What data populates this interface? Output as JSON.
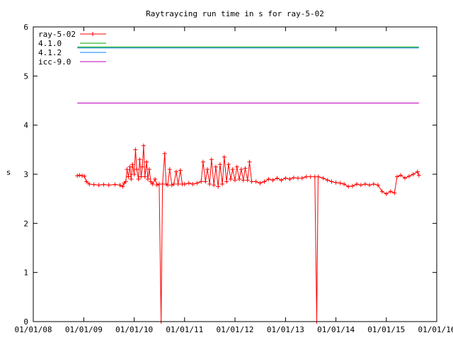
{
  "chart_data": {
    "type": "line",
    "title": "Raytraycing run time in s for ray-5-02",
    "xlabel": "",
    "ylabel": "s",
    "x_axis": {
      "kind": "date",
      "range": [
        "2008-01-01",
        "2016-01-01"
      ],
      "ticks": [
        "2008-01-01",
        "2009-01-01",
        "2010-01-01",
        "2011-01-01",
        "2012-01-01",
        "2013-01-01",
        "2014-01-01",
        "2015-01-01",
        "2016-01-01"
      ],
      "tick_labels": [
        "01/01/08",
        "01/01/09",
        "01/01/10",
        "01/01/11",
        "01/01/12",
        "01/01/13",
        "01/01/14",
        "01/01/15",
        "01/01/16"
      ]
    },
    "y_axis": {
      "range": [
        0,
        6
      ],
      "ticks": [
        0,
        1,
        2,
        3,
        4,
        5,
        6
      ],
      "tick_labels": [
        "0",
        "1",
        "2",
        "3",
        "4",
        "5",
        "6"
      ]
    },
    "grid": false,
    "legend_placement": "top-left",
    "series": [
      {
        "name": "ray-5-02",
        "style": "linespoints",
        "marker": "plus",
        "color": "#ff0000",
        "points": [
          [
            "2008-11-15",
            2.97
          ],
          [
            "2008-12-01",
            2.98
          ],
          [
            "2008-12-20",
            2.97
          ],
          [
            "2009-01-05",
            2.96
          ],
          [
            "2009-01-20",
            2.85
          ],
          [
            "2009-02-10",
            2.8
          ],
          [
            "2009-03-15",
            2.79
          ],
          [
            "2009-04-20",
            2.78
          ],
          [
            "2009-05-25",
            2.79
          ],
          [
            "2009-07-01",
            2.78
          ],
          [
            "2009-08-15",
            2.79
          ],
          [
            "2009-09-20",
            2.78
          ],
          [
            "2009-10-10",
            2.75
          ],
          [
            "2009-10-20",
            2.82
          ],
          [
            "2009-11-01",
            2.85
          ],
          [
            "2009-11-10",
            3.1
          ],
          [
            "2009-11-20",
            2.95
          ],
          [
            "2009-12-01",
            3.15
          ],
          [
            "2009-12-10",
            2.9
          ],
          [
            "2009-12-20",
            3.2
          ],
          [
            "2010-01-01",
            3.0
          ],
          [
            "2010-01-10",
            3.5
          ],
          [
            "2010-01-20",
            3.1
          ],
          [
            "2010-02-01",
            2.9
          ],
          [
            "2010-02-10",
            3.3
          ],
          [
            "2010-02-20",
            2.95
          ],
          [
            "2010-03-01",
            3.15
          ],
          [
            "2010-03-10",
            3.58
          ],
          [
            "2010-03-20",
            2.95
          ],
          [
            "2010-04-01",
            3.25
          ],
          [
            "2010-04-10",
            2.9
          ],
          [
            "2010-04-20",
            3.1
          ],
          [
            "2010-05-01",
            2.85
          ],
          [
            "2010-05-15",
            2.8
          ],
          [
            "2010-06-01",
            2.9
          ],
          [
            "2010-06-15",
            2.78
          ],
          [
            "2010-07-01",
            2.8
          ],
          [
            "2010-07-15",
            0.0
          ],
          [
            "2010-07-25",
            2.8
          ],
          [
            "2010-08-10",
            3.42
          ],
          [
            "2010-08-20",
            2.8
          ],
          [
            "2010-09-01",
            2.78
          ],
          [
            "2010-09-15",
            3.1
          ],
          [
            "2010-10-01",
            2.78
          ],
          [
            "2010-10-15",
            2.8
          ],
          [
            "2010-11-01",
            3.05
          ],
          [
            "2010-11-15",
            2.8
          ],
          [
            "2010-12-01",
            3.08
          ],
          [
            "2010-12-15",
            2.8
          ],
          [
            "2011-01-01",
            2.8
          ],
          [
            "2011-02-01",
            2.82
          ],
          [
            "2011-03-01",
            2.8
          ],
          [
            "2011-04-01",
            2.82
          ],
          [
            "2011-05-01",
            2.85
          ],
          [
            "2011-05-15",
            3.25
          ],
          [
            "2011-06-01",
            2.85
          ],
          [
            "2011-06-15",
            3.1
          ],
          [
            "2011-07-01",
            2.8
          ],
          [
            "2011-07-15",
            3.3
          ],
          [
            "2011-08-01",
            2.78
          ],
          [
            "2011-08-15",
            3.15
          ],
          [
            "2011-09-01",
            2.75
          ],
          [
            "2011-09-15",
            3.2
          ],
          [
            "2011-10-01",
            2.8
          ],
          [
            "2011-10-15",
            3.35
          ],
          [
            "2011-11-01",
            2.85
          ],
          [
            "2011-11-15",
            3.2
          ],
          [
            "2011-12-01",
            2.9
          ],
          [
            "2011-12-15",
            3.1
          ],
          [
            "2012-01-01",
            2.88
          ],
          [
            "2012-01-15",
            3.15
          ],
          [
            "2012-02-01",
            2.9
          ],
          [
            "2012-02-15",
            3.1
          ],
          [
            "2012-03-01",
            2.88
          ],
          [
            "2012-03-15",
            3.12
          ],
          [
            "2012-04-01",
            2.88
          ],
          [
            "2012-04-15",
            3.25
          ],
          [
            "2012-05-01",
            2.85
          ],
          [
            "2012-06-01",
            2.85
          ],
          [
            "2012-07-01",
            2.82
          ],
          [
            "2012-08-01",
            2.85
          ],
          [
            "2012-09-01",
            2.9
          ],
          [
            "2012-10-01",
            2.88
          ],
          [
            "2012-11-01",
            2.92
          ],
          [
            "2012-12-01",
            2.88
          ],
          [
            "2013-01-01",
            2.92
          ],
          [
            "2013-02-01",
            2.9
          ],
          [
            "2013-03-01",
            2.93
          ],
          [
            "2013-04-01",
            2.92
          ],
          [
            "2013-05-01",
            2.92
          ],
          [
            "2013-06-01",
            2.95
          ],
          [
            "2013-07-01",
            2.95
          ],
          [
            "2013-08-01",
            2.95
          ],
          [
            "2013-08-15",
            0.0
          ],
          [
            "2013-08-25",
            2.95
          ],
          [
            "2013-10-01",
            2.92
          ],
          [
            "2013-11-01",
            2.88
          ],
          [
            "2013-12-01",
            2.85
          ],
          [
            "2014-01-01",
            2.83
          ],
          [
            "2014-02-01",
            2.82
          ],
          [
            "2014-03-01",
            2.8
          ],
          [
            "2014-04-01",
            2.75
          ],
          [
            "2014-05-01",
            2.76
          ],
          [
            "2014-06-01",
            2.8
          ],
          [
            "2014-07-01",
            2.78
          ],
          [
            "2014-08-01",
            2.8
          ],
          [
            "2014-09-01",
            2.78
          ],
          [
            "2014-10-01",
            2.8
          ],
          [
            "2014-11-01",
            2.78
          ],
          [
            "2014-12-01",
            2.65
          ],
          [
            "2015-01-01",
            2.6
          ],
          [
            "2015-02-01",
            2.65
          ],
          [
            "2015-03-01",
            2.62
          ],
          [
            "2015-03-20",
            2.95
          ],
          [
            "2015-04-15",
            2.98
          ],
          [
            "2015-05-15",
            2.92
          ],
          [
            "2015-06-15",
            2.96
          ],
          [
            "2015-07-15",
            3.0
          ],
          [
            "2015-08-15",
            3.05
          ],
          [
            "2015-08-25",
            2.98
          ]
        ]
      },
      {
        "name": "4.1.0",
        "style": "line",
        "color": "#00a000",
        "points": [
          [
            "2008-11-15",
            5.59
          ],
          [
            "2015-08-25",
            5.59
          ]
        ]
      },
      {
        "name": "4.1.2",
        "style": "line",
        "color": "#0080ff",
        "points": [
          [
            "2008-11-15",
            5.57
          ],
          [
            "2015-08-25",
            5.57
          ]
        ]
      },
      {
        "name": "icc-9.0",
        "style": "line",
        "color": "#c000c0",
        "points": [
          [
            "2008-11-15",
            4.45
          ],
          [
            "2015-08-25",
            4.45
          ]
        ]
      }
    ]
  }
}
